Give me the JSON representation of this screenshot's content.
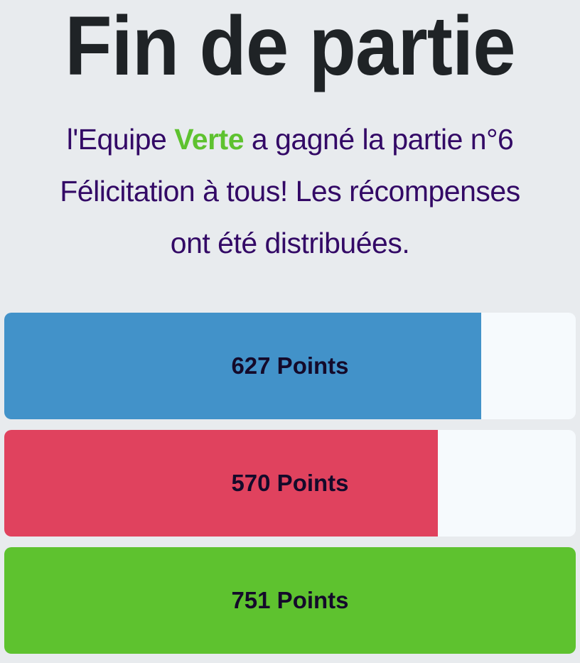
{
  "title": "Fin de partie",
  "message": {
    "prefix": "l'Equipe ",
    "winner": "Verte",
    "suffix": " a gagné la partie n°6",
    "line2": "Félicitation à tous! Les récompenses",
    "line3": "ont été distribuées."
  },
  "teams": [
    {
      "points": 627,
      "label": "627 Points",
      "color": "#4292c9"
    },
    {
      "points": 570,
      "label": "570 Points",
      "color": "#e0425e"
    },
    {
      "points": 751,
      "label": "751 Points",
      "color": "#5ec22f"
    }
  ],
  "max_points": 751
}
